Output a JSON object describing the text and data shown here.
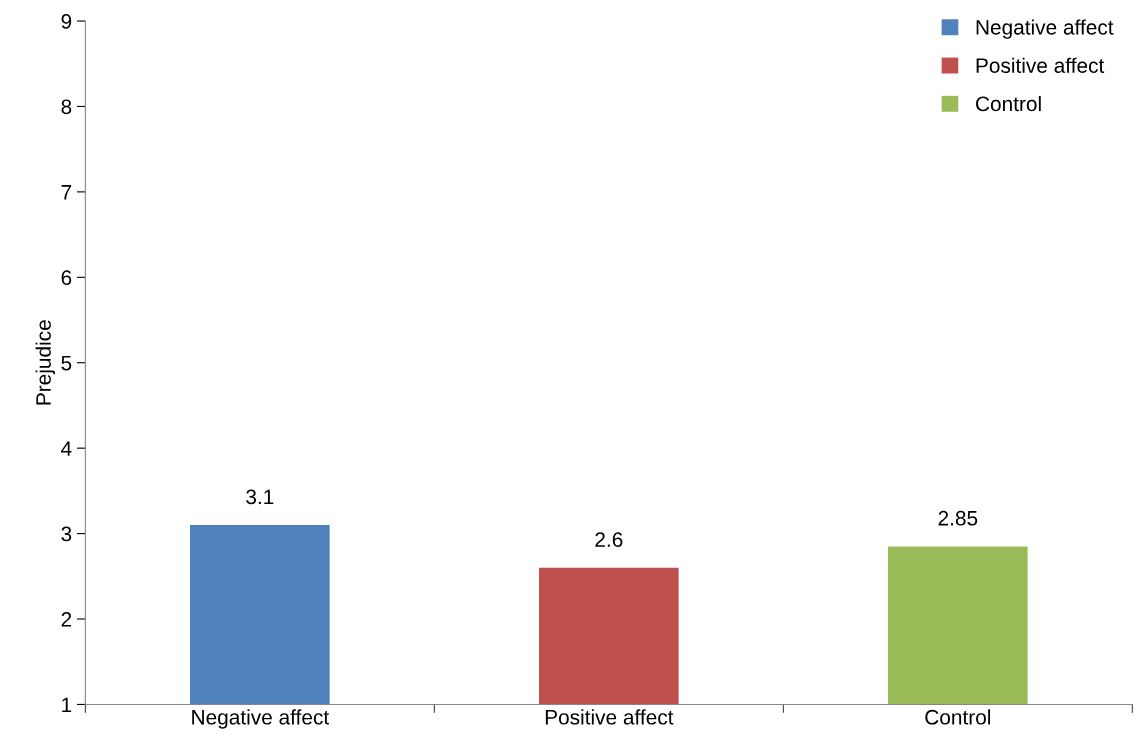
{
  "chart_data": {
    "type": "bar",
    "ylabel": "Prejudice",
    "stacked": true,
    "categories": [
      "Negative affect",
      "Positive affect",
      "Control"
    ],
    "series": [
      {
        "name": "Negative affect",
        "color": "#4f81bd",
        "values": [
          3.1,
          null,
          null
        ]
      },
      {
        "name": "Positive affect",
        "color": "#c0504d",
        "values": [
          null,
          2.6,
          null
        ]
      },
      {
        "name": "Control",
        "color": "#9bbb59",
        "values": [
          null,
          null,
          2.85
        ]
      }
    ],
    "ylim": [
      1,
      9
    ],
    "yticks": [
      1,
      2,
      3,
      4,
      5,
      6,
      7,
      8,
      9
    ],
    "data_labels": true,
    "grid": false,
    "legend": "top right"
  }
}
